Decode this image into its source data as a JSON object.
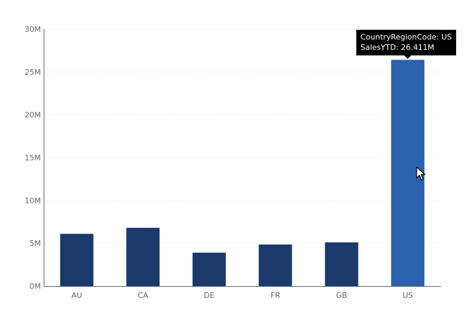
{
  "chart_data": {
    "type": "bar",
    "categories": [
      "AU",
      "CA",
      "DE",
      "FR",
      "GB",
      "US"
    ],
    "values": [
      6.1,
      6.8,
      3.9,
      4.85,
      5.1,
      26.411
    ],
    "ylim": [
      0,
      30
    ],
    "yticks": [
      0,
      5,
      10,
      15,
      20,
      25,
      30
    ],
    "ytick_labels": [
      "0M",
      "5M",
      "10M",
      "15M",
      "20M",
      "25M",
      "30M"
    ],
    "grid": true,
    "highlighted_index": 5,
    "colors": {
      "bar": "#1b3a6b",
      "bar_highlight": "#2b62ad",
      "grid": "#e3e3e3",
      "axis": "#666666"
    }
  },
  "tooltip": {
    "line1": "CountryRegionCode: US",
    "line2": "SalesYTD: 26.411M"
  },
  "cursor": {
    "icon": "mouse-pointer-icon"
  }
}
